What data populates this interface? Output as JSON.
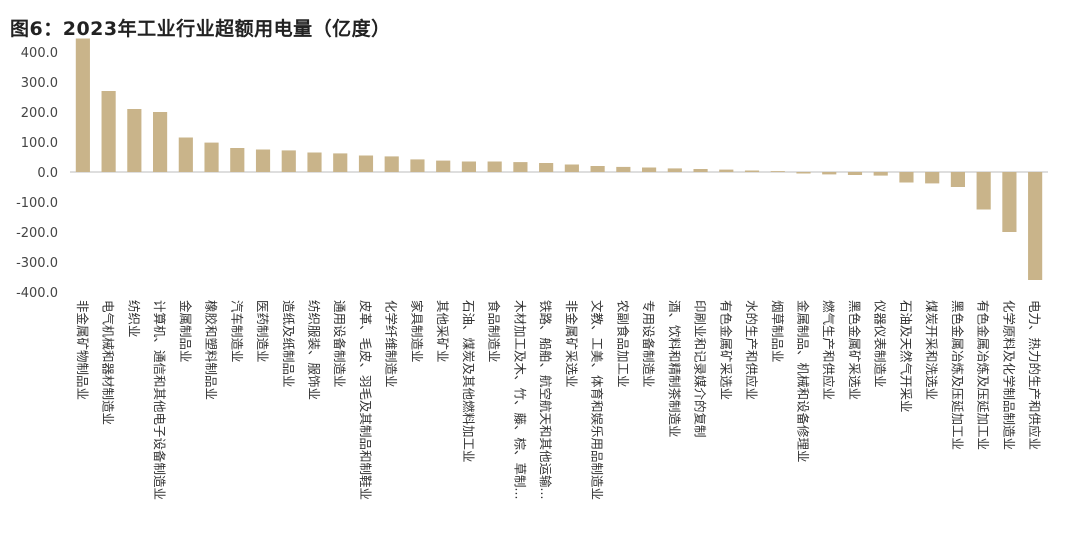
{
  "chart_data": {
    "type": "bar",
    "title": "图6：2023年工业行业超额用电量（亿度）",
    "xlabel": "",
    "ylabel": "",
    "ylim": [
      -400,
      450
    ],
    "yticks": [
      400,
      300,
      200,
      100,
      0,
      -100,
      -200,
      -300,
      -400
    ],
    "ytick_labels": [
      "400.0",
      "300.0",
      "200.0",
      "100.0",
      "0.0",
      "-100.0",
      "-200.0",
      "-300.0",
      "-400.0"
    ],
    "grid": false,
    "legend": "none",
    "bar_color": "#c9b48a",
    "categories": [
      "非金属矿物制品业",
      "电气机械和器材制造业",
      "纺织业",
      "计算机、通信和其他电子设备制造业",
      "金属制品业",
      "橡胶和塑料制品业",
      "汽车制造业",
      "医药制造业",
      "造纸及纸制品业",
      "纺织服装、服饰业",
      "通用设备制造业",
      "皮革、毛皮、羽毛及其制品和制鞋业",
      "化学纤维制造业",
      "家具制造业",
      "其他采矿业",
      "石油、煤炭及其他燃料加工业",
      "食品制造业",
      "木材加工及木、竹、藤、棕、草制...",
      "铁路、船舶、航空航天和其他运输...",
      "非金属矿采选业",
      "文教、工美、体育和娱乐用品制造业",
      "农副食品加工业",
      "专用设备制造业",
      "酒、饮料和精制茶制造业",
      "印刷业和记录媒介的复制",
      "有色金属矿采选业",
      "水的生产和供应业",
      "烟草制品业",
      "金属制品、机械和设备修理业",
      "燃气生产和供应业",
      "黑色金属矿采选业",
      "仪器仪表制造业",
      "石油及天然气开采业",
      "煤炭开采和洗选业",
      "黑色金属冶炼及压延加工业",
      "有色金属冶炼及压延加工业",
      "化学原料及化学制品制造业",
      "电力、热力的生产和供应业"
    ],
    "values": [
      445,
      270,
      210,
      200,
      115,
      98,
      80,
      75,
      72,
      65,
      62,
      55,
      52,
      42,
      38,
      35,
      35,
      33,
      30,
      25,
      20,
      17,
      15,
      12,
      10,
      8,
      5,
      3,
      -5,
      -8,
      -10,
      -12,
      -35,
      -38,
      -50,
      -125,
      -200,
      -360
    ]
  }
}
